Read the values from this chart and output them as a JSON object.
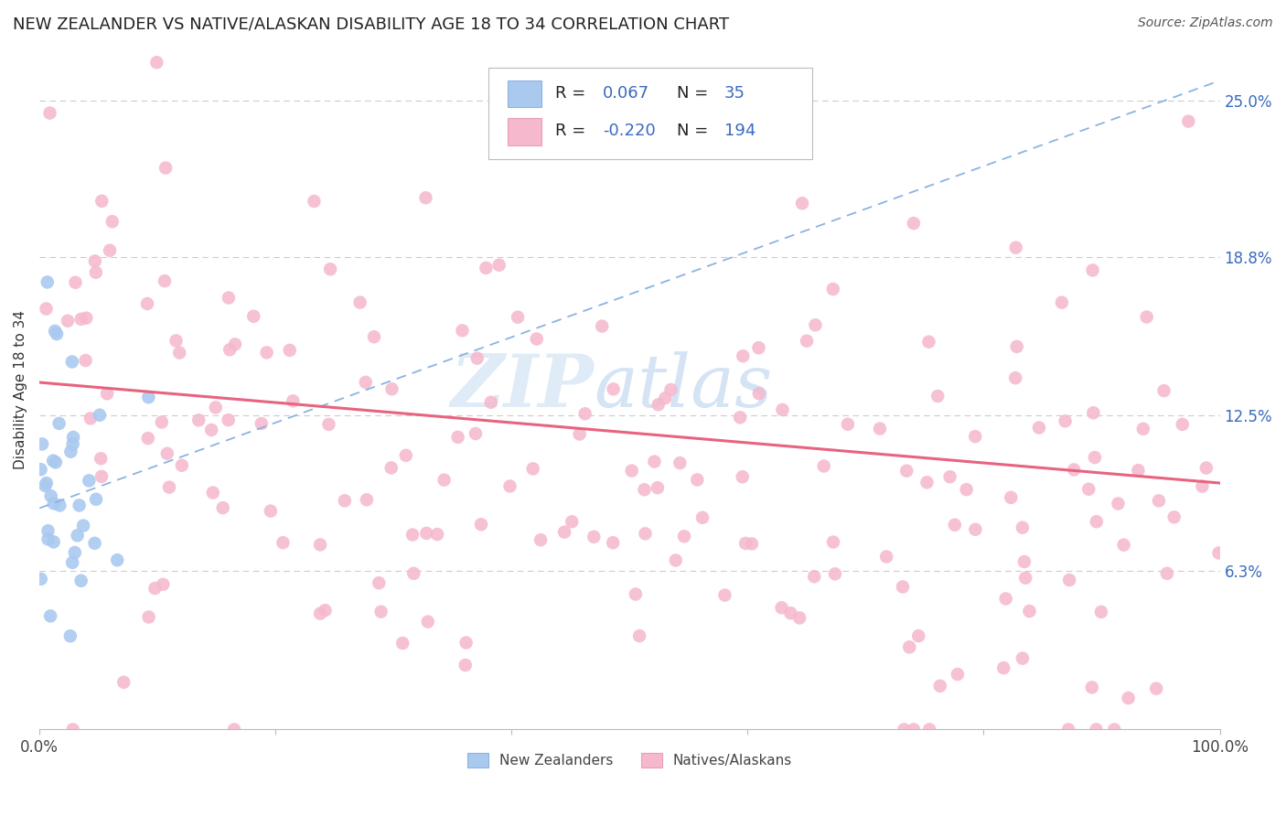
{
  "title": "NEW ZEALANDER VS NATIVE/ALASKAN DISABILITY AGE 18 TO 34 CORRELATION CHART",
  "source": "Source: ZipAtlas.com",
  "ylabel": "Disability Age 18 to 34",
  "ytick_labels": [
    "6.3%",
    "12.5%",
    "18.8%",
    "25.0%"
  ],
  "ytick_values": [
    0.063,
    0.125,
    0.188,
    0.25
  ],
  "xlim": [
    0.0,
    1.0
  ],
  "ylim": [
    0.0,
    0.27
  ],
  "nz_color": "#aac9ef",
  "nz_edge": "#aac9ef",
  "na_color": "#f5b8cc",
  "na_edge": "#f5b8cc",
  "trend_nz_color": "#8ab4e0",
  "trend_na_color": "#e8637e",
  "grid_color": "#cccccc",
  "watermark_zip": "ZIP",
  "watermark_atlas": "atlas",
  "legend_text_color": "#3a6abf",
  "legend_label_color": "#444444",
  "right_tick_color": "#3a6abf",
  "title_fontsize": 13,
  "axis_label_fontsize": 11,
  "tick_fontsize": 12,
  "source_fontsize": 10
}
